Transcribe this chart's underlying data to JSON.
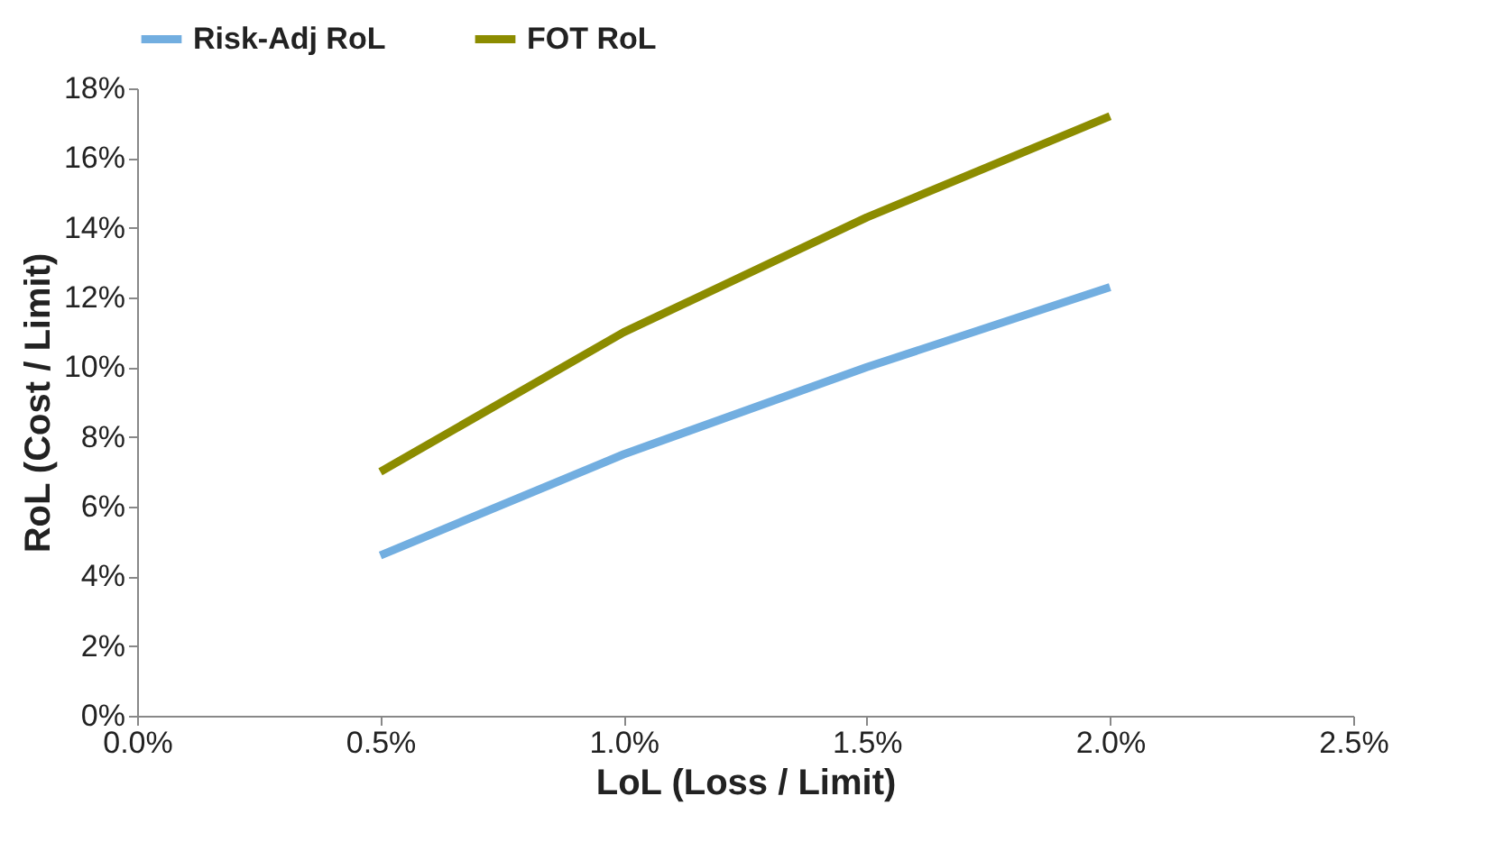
{
  "chart_data": {
    "type": "line",
    "xlabel": "LoL (Loss / Limit)",
    "ylabel": "RoL (Cost / Limit)",
    "x": [
      0.5,
      1.0,
      1.5,
      2.0
    ],
    "series": [
      {
        "name": "Risk-Adj RoL",
        "color": "#72aee0",
        "values": [
          4.6,
          7.5,
          10.0,
          12.3
        ]
      },
      {
        "name": "FOT RoL",
        "color": "#8c8c00",
        "values": [
          7.0,
          11.0,
          14.3,
          17.2
        ]
      }
    ],
    "xlim": [
      0,
      2.5
    ],
    "xticks": [
      {
        "value": 0,
        "label": "0.0%"
      },
      {
        "value": 0.5,
        "label": "0.5%"
      },
      {
        "value": 1.0,
        "label": "1.0%"
      },
      {
        "value": 1.5,
        "label": "1.5%"
      },
      {
        "value": 2.0,
        "label": "2.0%"
      },
      {
        "value": 2.5,
        "label": "2.5%"
      }
    ],
    "ylim": [
      0,
      18
    ],
    "yticks": [
      {
        "value": 0,
        "label": "0%"
      },
      {
        "value": 2,
        "label": "2%"
      },
      {
        "value": 4,
        "label": "4%"
      },
      {
        "value": 6,
        "label": "6%"
      },
      {
        "value": 8,
        "label": "8%"
      },
      {
        "value": 10,
        "label": "10%"
      },
      {
        "value": 12,
        "label": "12%"
      },
      {
        "value": 14,
        "label": "14%"
      },
      {
        "value": 16,
        "label": "16%"
      },
      {
        "value": 18,
        "label": "18%"
      }
    ],
    "grid": false,
    "legend": "top",
    "marker": "none",
    "line_style": "solid"
  }
}
